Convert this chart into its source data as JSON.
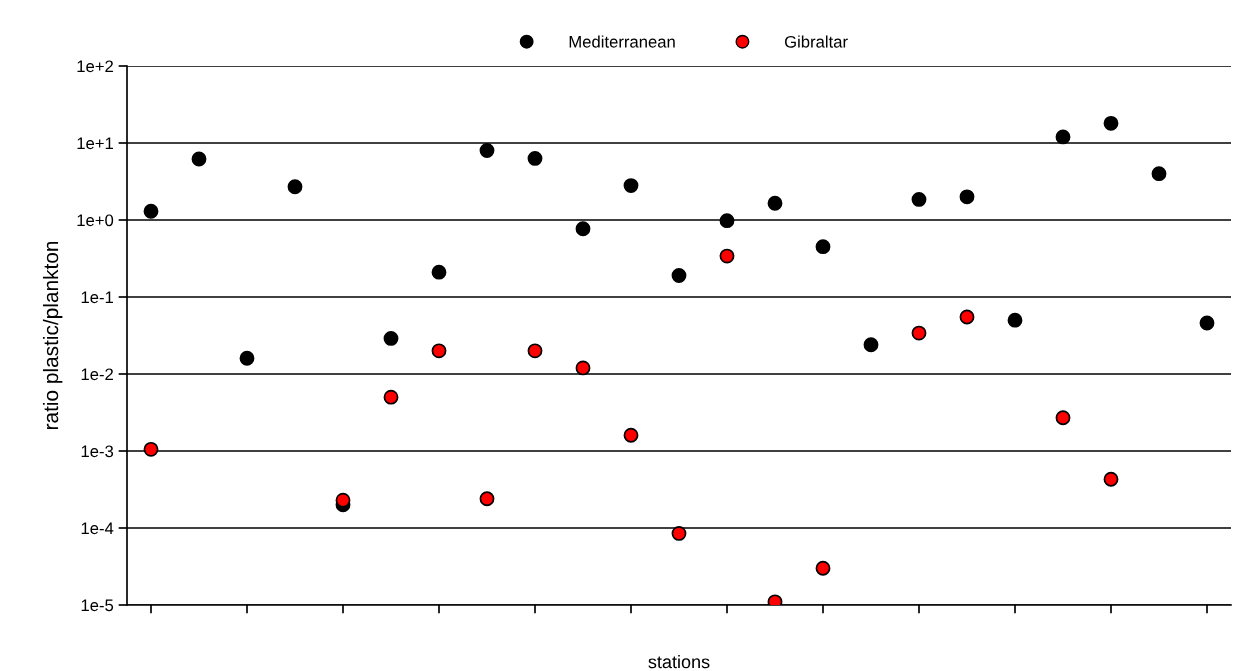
{
  "chart_data": {
    "type": "scatter",
    "xlabel": "stations",
    "ylabel": "ratio plastic/plankton",
    "categories": [
      null,
      null,
      null,
      null,
      null,
      null,
      null,
      null,
      null,
      null,
      null,
      null,
      null,
      null,
      null,
      null,
      null,
      null,
      null,
      null,
      null,
      null,
      null
    ],
    "series": [
      {
        "name": "Mediterranean",
        "color": "#000000",
        "values": [
          1.3,
          6.2,
          0.016,
          2.7,
          0.0002,
          0.029,
          0.21,
          8,
          6.3,
          0.77,
          2.8,
          0.19,
          0.98,
          1.65,
          0.45,
          0.024,
          1.85,
          2.0,
          0.05,
          12,
          18,
          4,
          0.046
        ]
      },
      {
        "name": "Gibraltar",
        "color": "#ff0000",
        "values": [
          0.00105,
          null,
          null,
          null,
          0.00023,
          0.005,
          0.02,
          0.00024,
          0.02,
          0.012,
          0.0016,
          8.5e-05,
          0.34,
          1.1e-05,
          3e-05,
          null,
          0.034,
          0.055,
          null,
          0.0027,
          0.00043,
          null,
          null
        ]
      }
    ],
    "log": "y",
    "ylim": [
      1e-05,
      100
    ],
    "yticks": [
      {
        "value": 1e-05,
        "label": "1e-5"
      },
      {
        "value": 0.0001,
        "label": "1e-4"
      },
      {
        "value": 0.001,
        "label": "1e-3"
      },
      {
        "value": 0.01,
        "label": "1e-2"
      },
      {
        "value": 0.1,
        "label": "1e-1"
      },
      {
        "value": 1,
        "label": "1e+0"
      },
      {
        "value": 10,
        "label": "1e+1"
      },
      {
        "value": 100,
        "label": "1e+2"
      }
    ],
    "grid": "y",
    "legend": "top",
    "marker": "circle",
    "tick_labels": "y"
  }
}
